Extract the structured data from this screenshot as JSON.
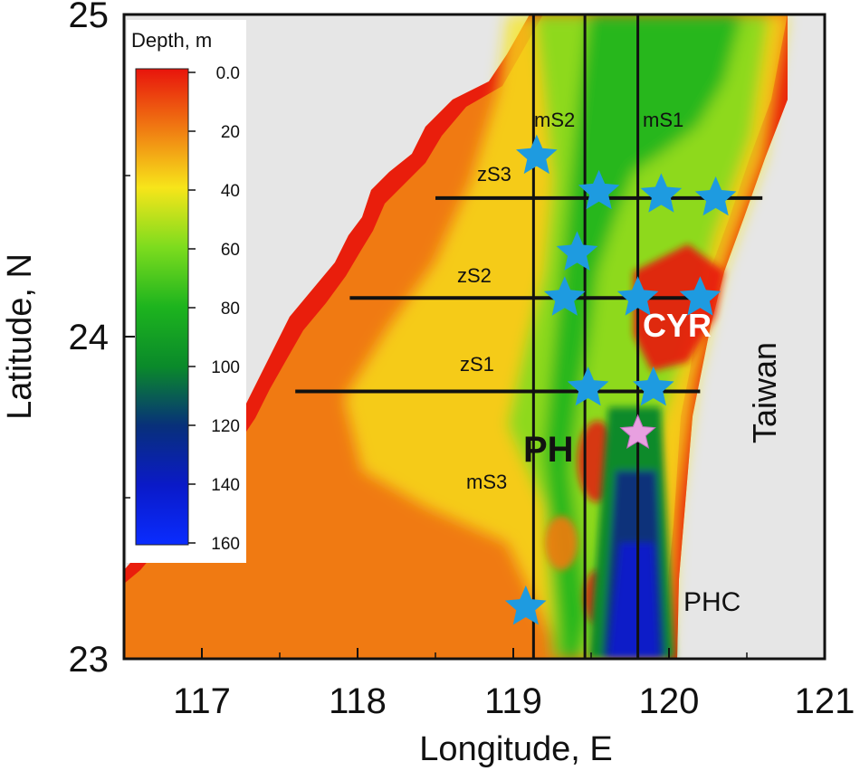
{
  "figure": {
    "xlabel": "Longitude, E",
    "ylabel": "Latitude, N",
    "x_ticks": [
      "117",
      "118",
      "119",
      "120",
      "121"
    ],
    "y_ticks": [
      "23",
      "24",
      "25"
    ],
    "xlim": [
      116.5,
      121.0
    ],
    "ylim": [
      23.0,
      25.0
    ]
  },
  "colorbar": {
    "title": "Depth, m",
    "ticks": [
      "0.0",
      "20",
      "40",
      "60",
      "80",
      "100",
      "120",
      "140",
      "160"
    ],
    "range": [
      0,
      160
    ],
    "colors": [
      "#e8140c",
      "#f07a12",
      "#f7e51a",
      "#7ddc1e",
      "#1db41e",
      "#0a8a2a",
      "#08307a",
      "#0a1ac8",
      "#0a2cff"
    ]
  },
  "labels": {
    "section_mS1": "mS1",
    "section_mS2": "mS2",
    "section_mS3": "mS3",
    "section_zS1": "zS1",
    "section_zS2": "zS2",
    "section_zS3": "zS3",
    "ph": "PH",
    "cyr": "CYR",
    "phc": "PHC",
    "taiwan": "Taiwan"
  },
  "meridional_sections_lon": [
    119.13,
    119.46,
    119.8
  ],
  "zonal_sections": [
    {
      "lat": 24.43,
      "lon": [
        118.5,
        120.6
      ]
    },
    {
      "lat": 24.12,
      "lon": [
        117.95,
        120.25
      ]
    },
    {
      "lat": 23.83,
      "lon": [
        117.6,
        120.2
      ]
    }
  ],
  "stations_blue": [
    {
      "lon": 119.15,
      "lat": 24.56
    },
    {
      "lon": 119.55,
      "lat": 24.45
    },
    {
      "lon": 119.95,
      "lat": 24.44
    },
    {
      "lon": 120.3,
      "lat": 24.43
    },
    {
      "lon": 119.41,
      "lat": 24.26
    },
    {
      "lon": 119.33,
      "lat": 24.12
    },
    {
      "lon": 119.8,
      "lat": 24.12
    },
    {
      "lon": 120.2,
      "lat": 24.12
    },
    {
      "lon": 119.48,
      "lat": 23.84
    },
    {
      "lon": 119.9,
      "lat": 23.84
    },
    {
      "lon": 119.08,
      "lat": 23.16
    }
  ],
  "station_pink": {
    "lon": 119.8,
    "lat": 23.7
  },
  "colors": {
    "land": "#e6e6e6",
    "shallow": "#f07a12",
    "star_blue": "#1e9be0",
    "star_pink": "#e8a0e0"
  }
}
